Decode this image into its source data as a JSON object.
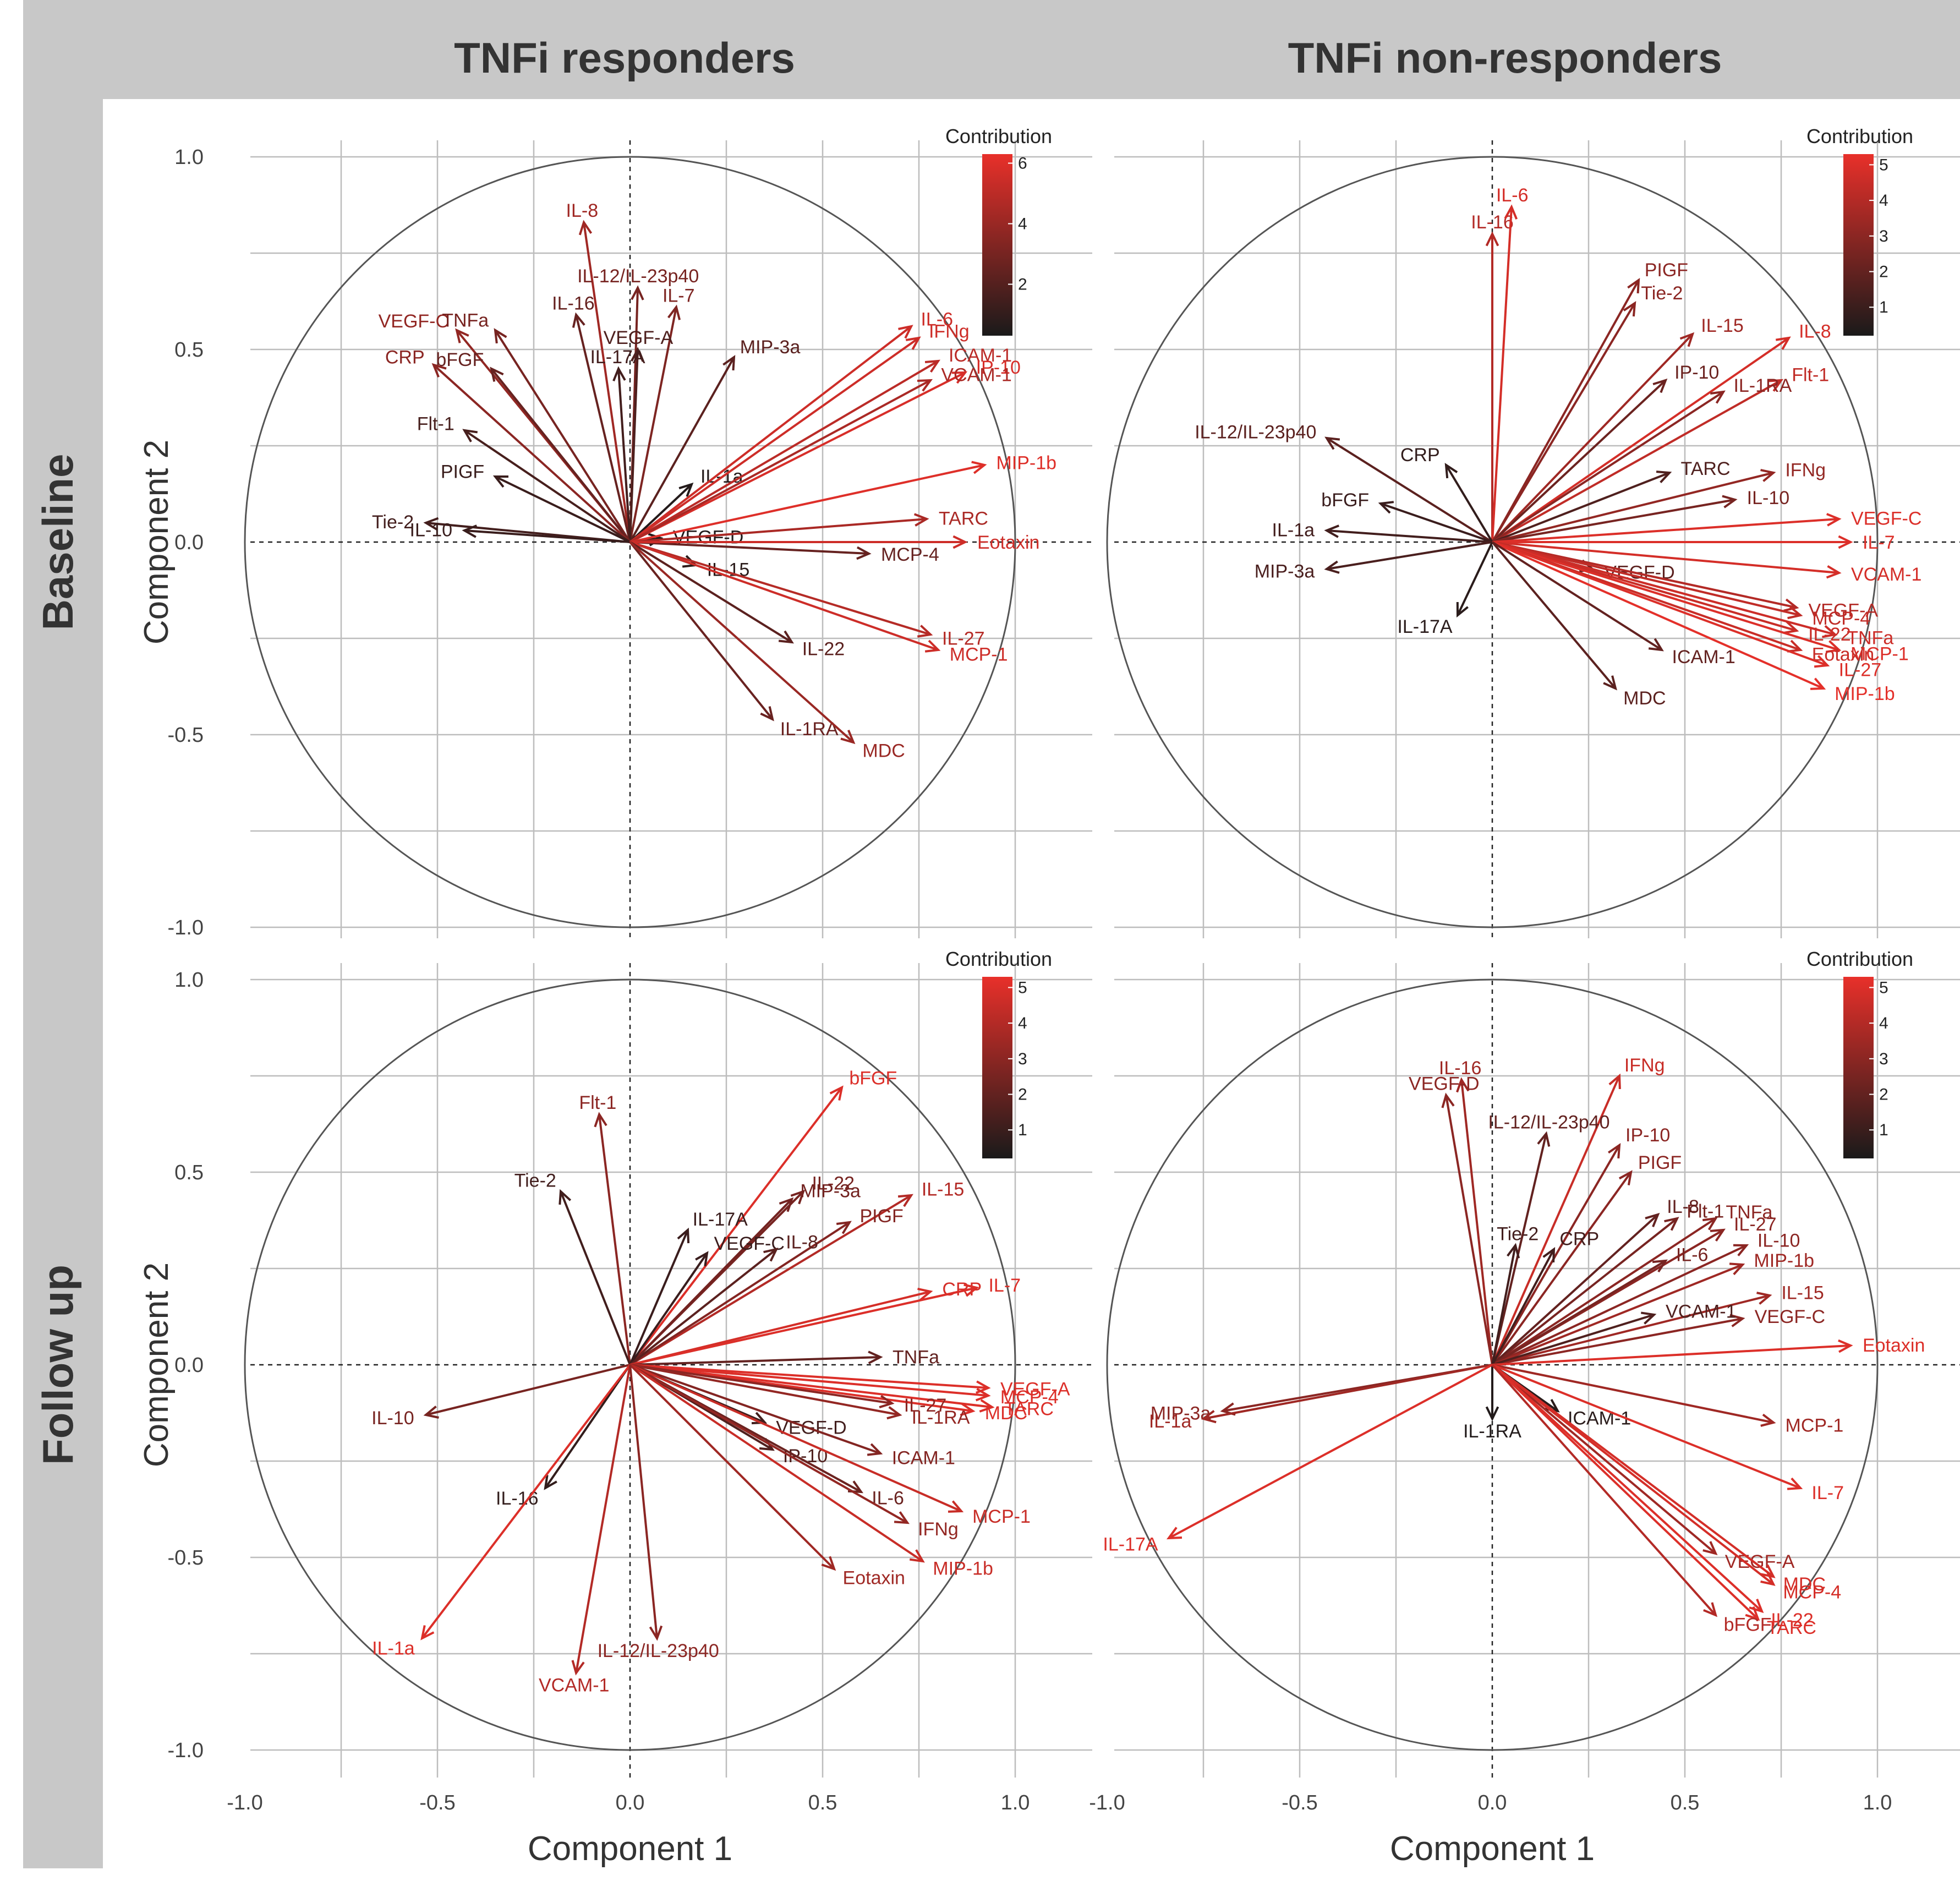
{
  "figure": {
    "column_headers": [
      "TNFi responders",
      "TNFi non-responders"
    ],
    "row_headers": [
      "Baseline",
      "Follow up"
    ],
    "xlabel": "Component 1",
    "ylabel": "Component 2",
    "x_tick_labels": [
      "-1.0",
      "-0.5",
      "0.0",
      "0.5",
      "1.0"
    ],
    "y_tick_labels": [
      "1.0",
      "0.5",
      "0.0",
      "-0.5",
      "-1.0"
    ],
    "legend_title": "Contribution",
    "color_low": "#1a1a1a",
    "color_high": "#e8302a",
    "strip_color": "#c8c8c8"
  },
  "chart_data": [
    {
      "type": "scatter",
      "panel": "Baseline / TNFi responders",
      "xlabel": "Component 1",
      "ylabel": "Component 2",
      "xlim": [
        -1.0,
        1.0
      ],
      "ylim": [
        -1.0,
        1.0
      ],
      "grid": true,
      "legend_placement": "top-right",
      "legend_title": "Contribution",
      "legend_ticks": [
        2,
        4,
        6
      ],
      "contribution_range": [
        0.3,
        6.3
      ],
      "variables": [
        {
          "name": "IL-8",
          "x": -0.12,
          "y": 0.83,
          "c": 4.2
        },
        {
          "name": "IL-12/IL-23p40",
          "x": 0.02,
          "y": 0.66,
          "c": 3.0
        },
        {
          "name": "IL-7",
          "x": 0.12,
          "y": 0.61,
          "c": 3.2
        },
        {
          "name": "IL-16",
          "x": -0.14,
          "y": 0.59,
          "c": 2.5
        },
        {
          "name": "VEGF-A",
          "x": 0.02,
          "y": 0.5,
          "c": 1.8
        },
        {
          "name": "IL-17A",
          "x": -0.03,
          "y": 0.45,
          "c": 1.5
        },
        {
          "name": "MIP-3a",
          "x": 0.27,
          "y": 0.48,
          "c": 2.2
        },
        {
          "name": "VEGF-C",
          "x": -0.45,
          "y": 0.55,
          "c": 3.8
        },
        {
          "name": "TNFa",
          "x": -0.35,
          "y": 0.55,
          "c": 3.0
        },
        {
          "name": "bFGF",
          "x": -0.36,
          "y": 0.45,
          "c": 2.5
        },
        {
          "name": "CRP",
          "x": -0.51,
          "y": 0.46,
          "c": 3.6
        },
        {
          "name": "Flt-1",
          "x": -0.43,
          "y": 0.29,
          "c": 1.6
        },
        {
          "name": "PIGF",
          "x": -0.35,
          "y": 0.17,
          "c": 1.2
        },
        {
          "name": "Tie-2",
          "x": -0.53,
          "y": 0.05,
          "c": 1.5
        },
        {
          "name": "IL-10",
          "x": -0.43,
          "y": 0.03,
          "c": 1.2
        },
        {
          "name": "IL-1a",
          "x": 0.16,
          "y": 0.15,
          "c": 0.6
        },
        {
          "name": "VEGF-D",
          "x": 0.08,
          "y": 0.01,
          "c": 0.5
        },
        {
          "name": "IL-15",
          "x": 0.17,
          "y": -0.06,
          "c": 0.8
        },
        {
          "name": "MCP-4",
          "x": 0.62,
          "y": -0.03,
          "c": 2.5
        },
        {
          "name": "IL-6",
          "x": 0.73,
          "y": 0.56,
          "c": 5.5
        },
        {
          "name": "IFNg",
          "x": 0.75,
          "y": 0.53,
          "c": 5.5
        },
        {
          "name": "ICAM-1",
          "x": 0.8,
          "y": 0.47,
          "c": 5.0
        },
        {
          "name": "IP-10",
          "x": 0.87,
          "y": 0.44,
          "c": 5.8
        },
        {
          "name": "VCAM-1",
          "x": 0.78,
          "y": 0.42,
          "c": 4.5
        },
        {
          "name": "MIP-1b",
          "x": 0.92,
          "y": 0.2,
          "c": 6.0
        },
        {
          "name": "TARC",
          "x": 0.77,
          "y": 0.06,
          "c": 4.5
        },
        {
          "name": "Eotaxin",
          "x": 0.87,
          "y": 0.0,
          "c": 5.5
        },
        {
          "name": "IL-27",
          "x": 0.78,
          "y": -0.24,
          "c": 4.8
        },
        {
          "name": "MCP-1",
          "x": 0.8,
          "y": -0.28,
          "c": 5.5
        },
        {
          "name": "IL-22",
          "x": 0.42,
          "y": -0.26,
          "c": 2.2
        },
        {
          "name": "IL-1RA",
          "x": 0.37,
          "y": -0.46,
          "c": 2.6
        },
        {
          "name": "MDC",
          "x": 0.58,
          "y": -0.52,
          "c": 4.0
        }
      ]
    },
    {
      "type": "scatter",
      "panel": "Baseline / TNFi non-responders",
      "xlabel": "Component 1",
      "ylabel": "Component 2",
      "xlim": [
        -1.0,
        1.0
      ],
      "ylim": [
        -1.0,
        1.0
      ],
      "grid": true,
      "legend_placement": "top-right",
      "legend_title": "Contribution",
      "legend_ticks": [
        1,
        2,
        3,
        4,
        5
      ],
      "contribution_range": [
        0.2,
        5.3
      ],
      "variables": [
        {
          "name": "IL-16",
          "x": 0.0,
          "y": 0.8,
          "c": 4.0
        },
        {
          "name": "IL-6",
          "x": 0.05,
          "y": 0.87,
          "c": 4.8
        },
        {
          "name": "PIGF",
          "x": 0.38,
          "y": 0.68,
          "c": 3.0
        },
        {
          "name": "Tie-2",
          "x": 0.37,
          "y": 0.62,
          "c": 3.0
        },
        {
          "name": "IL-15",
          "x": 0.52,
          "y": 0.54,
          "c": 3.5
        },
        {
          "name": "IL-8",
          "x": 0.77,
          "y": 0.53,
          "c": 4.8
        },
        {
          "name": "IP-10",
          "x": 0.45,
          "y": 0.42,
          "c": 2.2
        },
        {
          "name": "Flt-1",
          "x": 0.75,
          "y": 0.42,
          "c": 4.3
        },
        {
          "name": "IL-1RA",
          "x": 0.6,
          "y": 0.39,
          "c": 3.0
        },
        {
          "name": "IL-12/IL-23p40",
          "x": -0.43,
          "y": 0.27,
          "c": 1.8
        },
        {
          "name": "CRP",
          "x": -0.12,
          "y": 0.2,
          "c": 0.8
        },
        {
          "name": "TARC",
          "x": 0.46,
          "y": 0.18,
          "c": 1.5
        },
        {
          "name": "IFNg",
          "x": 0.73,
          "y": 0.18,
          "c": 3.2
        },
        {
          "name": "bFGF",
          "x": -0.29,
          "y": 0.1,
          "c": 1.0
        },
        {
          "name": "IL-10",
          "x": 0.63,
          "y": 0.11,
          "c": 2.5
        },
        {
          "name": "IL-1a",
          "x": -0.43,
          "y": 0.03,
          "c": 1.2
        },
        {
          "name": "VEGF-C",
          "x": 0.9,
          "y": 0.06,
          "c": 5.0
        },
        {
          "name": "IL-7",
          "x": 0.93,
          "y": 0.0,
          "c": 5.0
        },
        {
          "name": "VCAM-1",
          "x": 0.9,
          "y": -0.08,
          "c": 4.8
        },
        {
          "name": "MIP-3a",
          "x": -0.43,
          "y": -0.07,
          "c": 1.4
        },
        {
          "name": "VEGF-D",
          "x": 0.26,
          "y": -0.07,
          "c": 1.8
        },
        {
          "name": "IL-17A",
          "x": -0.09,
          "y": -0.19,
          "c": 0.6
        },
        {
          "name": "VEGF-A",
          "x": 0.79,
          "y": -0.17,
          "c": 4.0
        },
        {
          "name": "MCP-4",
          "x": 0.8,
          "y": -0.19,
          "c": 4.3
        },
        {
          "name": "IL-22",
          "x": 0.79,
          "y": -0.23,
          "c": 4.5
        },
        {
          "name": "TNFa",
          "x": 0.89,
          "y": -0.24,
          "c": 4.6
        },
        {
          "name": "MCP-1",
          "x": 0.9,
          "y": -0.28,
          "c": 5.0
        },
        {
          "name": "Eotaxin",
          "x": 0.8,
          "y": -0.28,
          "c": 4.5
        },
        {
          "name": "IL-27",
          "x": 0.87,
          "y": -0.32,
          "c": 5.0
        },
        {
          "name": "MIP-1b",
          "x": 0.86,
          "y": -0.38,
          "c": 5.2
        },
        {
          "name": "ICAM-1",
          "x": 0.44,
          "y": -0.28,
          "c": 2.0
        },
        {
          "name": "MDC",
          "x": 0.32,
          "y": -0.38,
          "c": 1.8
        }
      ]
    },
    {
      "type": "scatter",
      "panel": "Follow up / TNFi responders",
      "xlabel": "Component 1",
      "ylabel": "Component 2",
      "xlim": [
        -1.0,
        1.0
      ],
      "ylim": [
        -1.0,
        1.0
      ],
      "grid": true,
      "legend_placement": "top-right",
      "legend_title": "Contribution",
      "legend_ticks": [
        1,
        2,
        3,
        4,
        5
      ],
      "contribution_range": [
        0.2,
        5.3
      ],
      "variables": [
        {
          "name": "bFGF",
          "x": 0.55,
          "y": 0.72,
          "c": 5.0
        },
        {
          "name": "Flt-1",
          "x": -0.08,
          "y": 0.65,
          "c": 3.0
        },
        {
          "name": "Tie-2",
          "x": -0.18,
          "y": 0.45,
          "c": 1.2
        },
        {
          "name": "IL-22",
          "x": 0.45,
          "y": 0.45,
          "c": 2.5
        },
        {
          "name": "MIP-3a",
          "x": 0.42,
          "y": 0.43,
          "c": 2.4
        },
        {
          "name": "IL-15",
          "x": 0.73,
          "y": 0.44,
          "c": 4.0
        },
        {
          "name": "PIGF",
          "x": 0.57,
          "y": 0.37,
          "c": 2.8
        },
        {
          "name": "IL-17A",
          "x": 0.15,
          "y": 0.35,
          "c": 1.0
        },
        {
          "name": "VEGF-C",
          "x": 0.2,
          "y": 0.29,
          "c": 1.0
        },
        {
          "name": "IL-8",
          "x": 0.38,
          "y": 0.3,
          "c": 1.8
        },
        {
          "name": "CRP",
          "x": 0.78,
          "y": 0.19,
          "c": 4.8
        },
        {
          "name": "IL-7",
          "x": 0.9,
          "y": 0.2,
          "c": 5.0
        },
        {
          "name": "TNFa",
          "x": 0.65,
          "y": 0.02,
          "c": 2.0
        },
        {
          "name": "IL-10",
          "x": -0.53,
          "y": -0.13,
          "c": 2.5
        },
        {
          "name": "VEGF-A",
          "x": 0.93,
          "y": -0.06,
          "c": 5.0
        },
        {
          "name": "MCP-4",
          "x": 0.93,
          "y": -0.08,
          "c": 5.0
        },
        {
          "name": "TARC",
          "x": 0.94,
          "y": -0.11,
          "c": 5.0
        },
        {
          "name": "MDC",
          "x": 0.89,
          "y": -0.12,
          "c": 5.0
        },
        {
          "name": "IL-27",
          "x": 0.68,
          "y": -0.1,
          "c": 3.0
        },
        {
          "name": "IL-1RA",
          "x": 0.7,
          "y": -0.13,
          "c": 3.2
        },
        {
          "name": "VEGF-D",
          "x": 0.35,
          "y": -0.15,
          "c": 1.2
        },
        {
          "name": "IP-10",
          "x": 0.37,
          "y": -0.22,
          "c": 1.5
        },
        {
          "name": "ICAM-1",
          "x": 0.65,
          "y": -0.23,
          "c": 2.8
        },
        {
          "name": "IL-16",
          "x": -0.22,
          "y": -0.32,
          "c": 0.8
        },
        {
          "name": "IL-6",
          "x": 0.6,
          "y": -0.33,
          "c": 2.2
        },
        {
          "name": "MCP-1",
          "x": 0.86,
          "y": -0.38,
          "c": 4.5
        },
        {
          "name": "IFNg",
          "x": 0.72,
          "y": -0.41,
          "c": 3.2
        },
        {
          "name": "MIP-1b",
          "x": 0.76,
          "y": -0.51,
          "c": 4.5
        },
        {
          "name": "Eotaxin",
          "x": 0.53,
          "y": -0.53,
          "c": 3.5
        },
        {
          "name": "IL-1a",
          "x": -0.54,
          "y": -0.71,
          "c": 5.0
        },
        {
          "name": "VCAM-1",
          "x": -0.14,
          "y": -0.8,
          "c": 4.0
        },
        {
          "name": "IL-12/IL-23p40",
          "x": 0.07,
          "y": -0.71,
          "c": 3.0
        }
      ]
    },
    {
      "type": "scatter",
      "panel": "Follow up / TNFi non-responders",
      "xlabel": "Component 1",
      "ylabel": "Component 2",
      "xlim": [
        -1.0,
        1.0
      ],
      "ylim": [
        -1.0,
        1.0
      ],
      "grid": true,
      "legend_placement": "top-right",
      "legend_title": "Contribution",
      "legend_ticks": [
        1,
        2,
        3,
        4,
        5
      ],
      "contribution_range": [
        0.2,
        5.3
      ],
      "variables": [
        {
          "name": "IFNg",
          "x": 0.33,
          "y": 0.75,
          "c": 4.5
        },
        {
          "name": "IL-16",
          "x": -0.08,
          "y": 0.74,
          "c": 3.5
        },
        {
          "name": "VEGF-D",
          "x": -0.12,
          "y": 0.7,
          "c": 3.0
        },
        {
          "name": "IL-12/IL-23p40",
          "x": 0.14,
          "y": 0.6,
          "c": 2.0
        },
        {
          "name": "IP-10",
          "x": 0.33,
          "y": 0.57,
          "c": 3.0
        },
        {
          "name": "PIGF",
          "x": 0.36,
          "y": 0.5,
          "c": 3.0
        },
        {
          "name": "TNFa",
          "x": 0.58,
          "y": 0.38,
          "c": 3.0
        },
        {
          "name": "Flt-1",
          "x": 0.48,
          "y": 0.38,
          "c": 2.5
        },
        {
          "name": "IL-8",
          "x": 0.43,
          "y": 0.39,
          "c": 2.0
        },
        {
          "name": "IL-27",
          "x": 0.6,
          "y": 0.35,
          "c": 3.0
        },
        {
          "name": "IL-10",
          "x": 0.66,
          "y": 0.31,
          "c": 3.0
        },
        {
          "name": "IL-6",
          "x": 0.45,
          "y": 0.27,
          "c": 2.5
        },
        {
          "name": "MIP-1b",
          "x": 0.65,
          "y": 0.26,
          "c": 3.5
        },
        {
          "name": "IL-15",
          "x": 0.72,
          "y": 0.18,
          "c": 3.5
        },
        {
          "name": "VEGF-C",
          "x": 0.65,
          "y": 0.12,
          "c": 3.0
        },
        {
          "name": "VCAM-1",
          "x": 0.42,
          "y": 0.13,
          "c": 1.5
        },
        {
          "name": "Tie-2",
          "x": 0.06,
          "y": 0.31,
          "c": 1.2
        },
        {
          "name": "CRP",
          "x": 0.16,
          "y": 0.3,
          "c": 1.2
        },
        {
          "name": "Eotaxin",
          "x": 0.93,
          "y": 0.05,
          "c": 5.0
        },
        {
          "name": "MIP-3a",
          "x": -0.7,
          "y": -0.12,
          "c": 3.0
        },
        {
          "name": "IL-1a",
          "x": -0.75,
          "y": -0.14,
          "c": 3.5
        },
        {
          "name": "ICAM-1",
          "x": 0.17,
          "y": -0.12,
          "c": 0.6
        },
        {
          "name": "IL-1RA",
          "x": 0.0,
          "y": -0.14,
          "c": 0.4
        },
        {
          "name": "MCP-1",
          "x": 0.73,
          "y": -0.15,
          "c": 3.5
        },
        {
          "name": "IL-7",
          "x": 0.8,
          "y": -0.32,
          "c": 5.0
        },
        {
          "name": "IL-17A",
          "x": -0.84,
          "y": -0.45,
          "c": 5.0
        },
        {
          "name": "VEGF-A",
          "x": 0.58,
          "y": -0.49,
          "c": 3.5
        },
        {
          "name": "MDC",
          "x": 0.73,
          "y": -0.55,
          "c": 4.8
        },
        {
          "name": "MCP-4",
          "x": 0.73,
          "y": -0.57,
          "c": 4.8
        },
        {
          "name": "IL-22",
          "x": 0.7,
          "y": -0.64,
          "c": 5.0
        },
        {
          "name": "TARC",
          "x": 0.69,
          "y": -0.66,
          "c": 5.0
        },
        {
          "name": "bFGF",
          "x": 0.58,
          "y": -0.65,
          "c": 4.0
        }
      ]
    }
  ]
}
